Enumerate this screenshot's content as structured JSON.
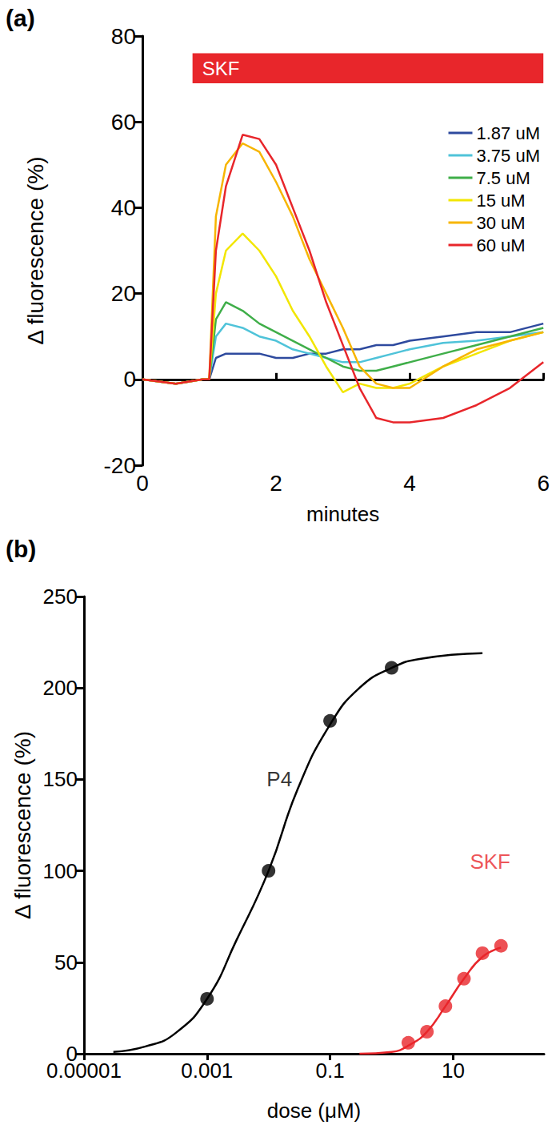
{
  "chart_data": [
    {
      "type": "line",
      "title": "(a)",
      "x_label": "minutes",
      "y_label": "Δ fluorescence (%)",
      "xlim": [
        0,
        6
      ],
      "xticks": [
        0,
        2,
        4,
        6
      ],
      "ylim": [
        -20,
        80
      ],
      "yticks": [
        -20,
        0,
        20,
        40,
        60,
        80
      ],
      "grid": false,
      "legend": "upper right",
      "stimulus": {
        "text": "SKF",
        "x_start": 0.75,
        "x_end": 6,
        "color": "#e8262b"
      },
      "x": [
        0,
        0.5,
        0.9,
        1.0,
        1.1,
        1.25,
        1.5,
        1.75,
        2,
        2.25,
        2.5,
        2.75,
        3,
        3.25,
        3.5,
        3.75,
        4,
        4.5,
        5,
        5.5,
        6
      ],
      "series": [
        {
          "name": "1.87 uM",
          "color": "#2e4a9e",
          "values": [
            0,
            -1,
            0,
            0,
            5,
            6,
            6,
            6,
            5,
            5,
            6,
            6,
            7,
            7,
            8,
            8,
            9,
            10,
            11,
            11,
            13
          ]
        },
        {
          "name": "3.75 uM",
          "color": "#4fc3d9",
          "values": [
            0,
            -1,
            0,
            0,
            10,
            13,
            12,
            10,
            9,
            7,
            6,
            5,
            4,
            4,
            5,
            6,
            7,
            8.5,
            9,
            10,
            11
          ]
        },
        {
          "name": "7.5 uM",
          "color": "#3fae49",
          "values": [
            0,
            -1,
            0,
            0,
            14,
            18,
            16,
            13,
            11,
            9,
            7,
            5,
            3,
            2,
            2,
            3,
            4,
            6,
            8,
            10,
            12
          ]
        },
        {
          "name": "15 uM",
          "color": "#f2e600",
          "values": [
            0,
            -1,
            0,
            0,
            20,
            30,
            34,
            30,
            24,
            16,
            10,
            3,
            -3,
            -1,
            -2,
            -2,
            -1,
            3,
            6,
            9,
            11
          ]
        },
        {
          "name": "30 uM",
          "color": "#f7b500",
          "values": [
            0,
            -1,
            0,
            0,
            38,
            50,
            55,
            53,
            46,
            38,
            28,
            20,
            12,
            3,
            -1,
            -2,
            -2,
            3,
            7,
            9,
            11
          ]
        },
        {
          "name": "60 uM",
          "color": "#e8262b",
          "values": [
            0,
            -1,
            0,
            0,
            30,
            45,
            57,
            56,
            50,
            40,
            30,
            18,
            8,
            -2,
            -9,
            -10,
            -10,
            -9,
            -6,
            -2,
            4
          ]
        }
      ]
    },
    {
      "type": "scatter",
      "title": "(b)",
      "x_label": "dose (μM)",
      "y_label": "Δ fluorescence (%)",
      "log": "x",
      "xlim": [
        1e-05,
        300
      ],
      "xticks": [
        1e-05,
        0.001,
        0.1,
        10
      ],
      "ylim": [
        0,
        250
      ],
      "yticks": [
        0,
        50,
        100,
        150,
        200,
        250
      ],
      "grid": false,
      "marker": "circle",
      "annotations": [
        {
          "text": "P4",
          "x": 0.015,
          "y": 150,
          "color": "#000000"
        },
        {
          "text": "SKF",
          "x": 40,
          "y": 105,
          "color": "#e8262b"
        }
      ],
      "series": [
        {
          "name": "P4",
          "color": "#000000",
          "x": [
            0.001,
            0.01,
            0.1,
            1
          ],
          "values": [
            30,
            100,
            182,
            211
          ],
          "fit": {
            "x": [
              3e-05,
              0.0001,
              0.0003,
              0.001,
              0.003,
              0.01,
              0.03,
              0.1,
              0.3,
              1,
              3,
              30
            ],
            "values": [
              1,
              4,
              11,
              30,
              62,
              100,
              145,
              180,
              200,
              211,
              216,
              219
            ]
          }
        },
        {
          "name": "SKF",
          "color": "#e8262b",
          "x": [
            1.87,
            3.75,
            7.5,
            15,
            30,
            60
          ],
          "values": [
            6,
            12,
            26,
            41,
            55,
            59
          ],
          "fit": {
            "x": [
              0.3,
              1,
              2,
              3.75,
              7.5,
              15,
              30,
              60
            ],
            "values": [
              0,
              1,
              5,
              12,
              26,
              41,
              53,
              58
            ]
          }
        }
      ]
    }
  ]
}
